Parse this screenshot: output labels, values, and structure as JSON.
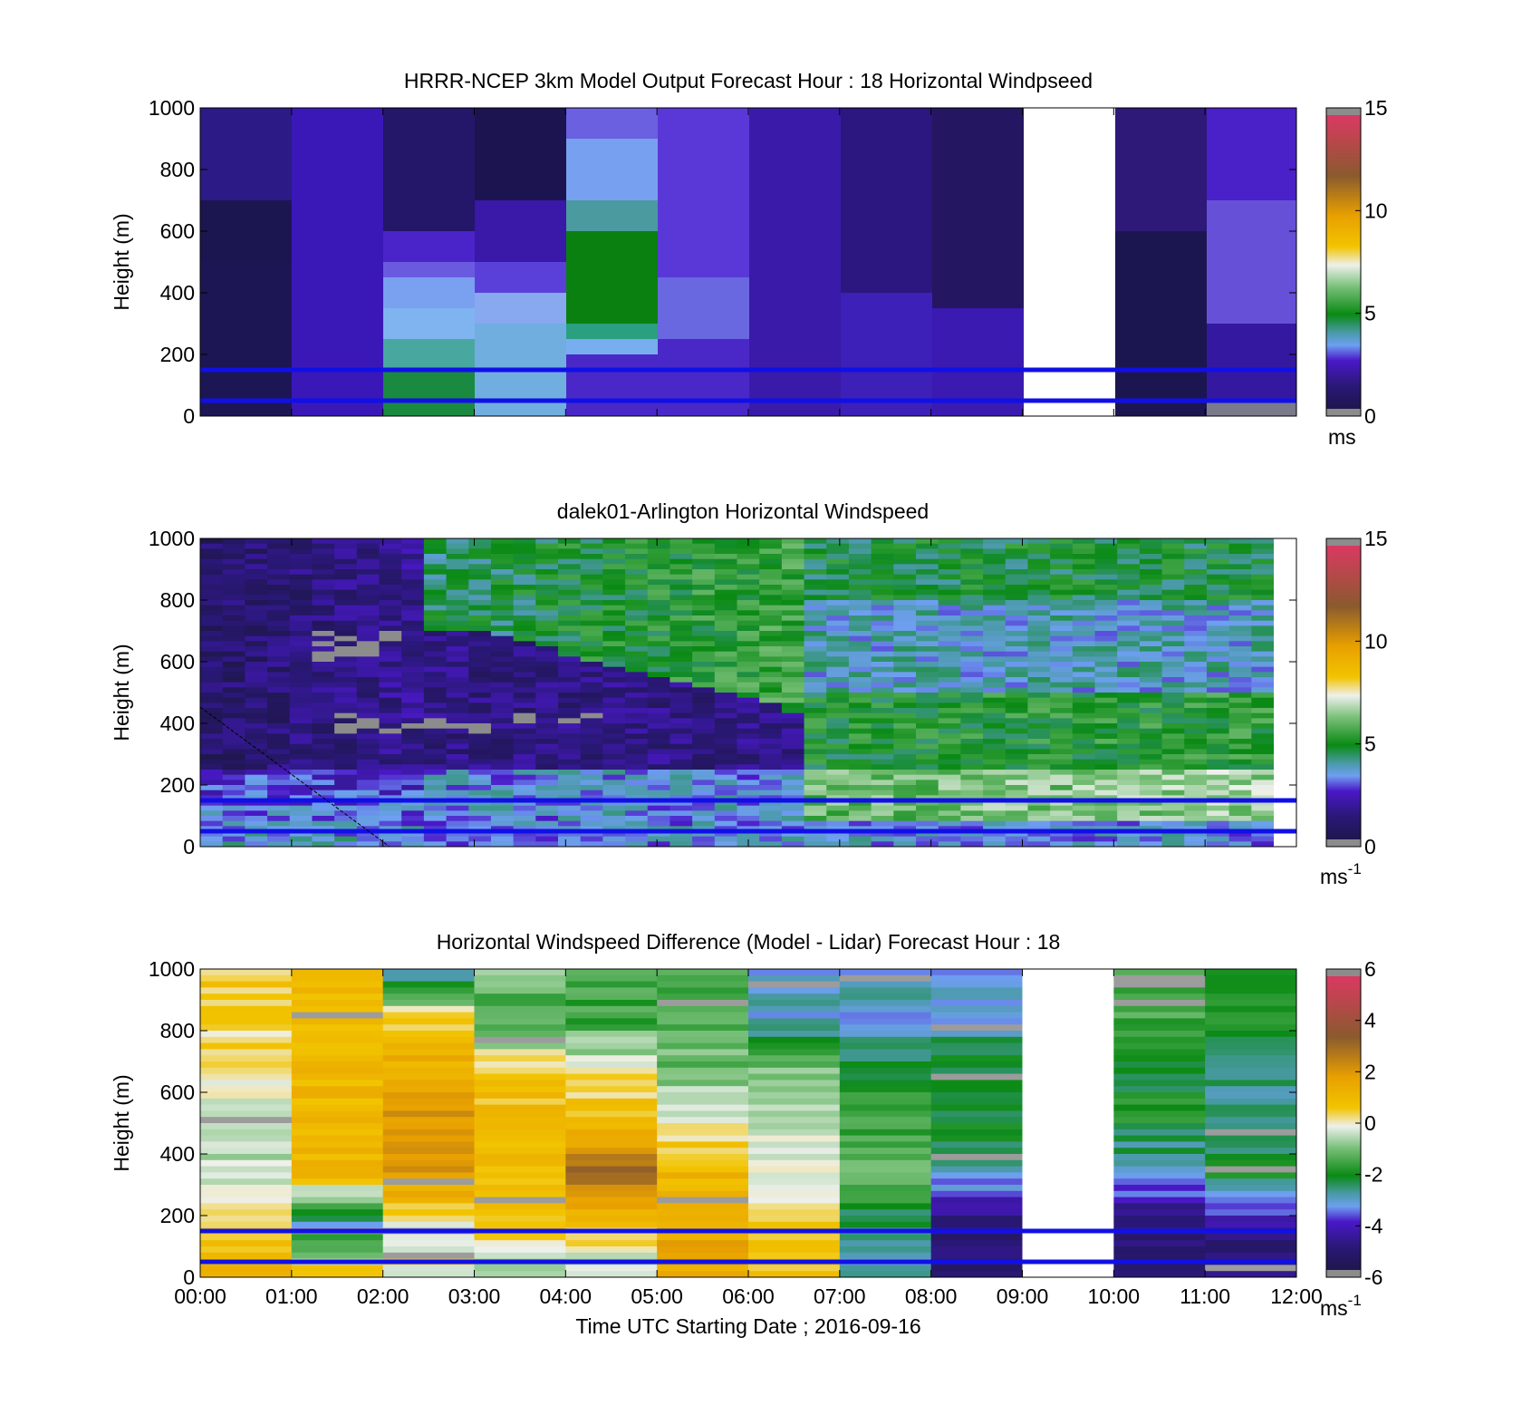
{
  "figure": {
    "xlabel": "Time UTC  Starting Date ; 2016-09-16",
    "time_ticks": [
      "00:00",
      "01:00",
      "02:00",
      "03:00",
      "04:00",
      "05:00",
      "06:00",
      "07:00",
      "08:00",
      "09:00",
      "10:00",
      "11:00",
      "12:00"
    ],
    "height_ticks": [
      "0",
      "200",
      "400",
      "600",
      "800",
      "1000"
    ],
    "ylabel": "Height (m)",
    "reference_lines_m": [
      50,
      150
    ],
    "reference_line_color": "#1010e6",
    "colormap": [
      "#1c1640",
      "#2a1878",
      "#4a18c8",
      "#6a50e0",
      "#6e9ff0",
      "#4aa0a8",
      "#0a8a14",
      "#52b852",
      "#eef0ec",
      "#f2c400",
      "#e8a000",
      "#8a5a2e",
      "#d83a60"
    ]
  },
  "chart_data": [
    {
      "type": "heatmap",
      "title": "HRRR-NCEP 3km Model Output   Forecast Hour : 18 Horizontal Windpseed",
      "x_range": [
        "00:00",
        "12:00"
      ],
      "y_range": [
        0,
        1000
      ],
      "colorbar": {
        "ticks": [
          "0",
          "5",
          "10",
          "15"
        ],
        "range": [
          0,
          15
        ],
        "unit_label": "ms"
      },
      "hourly_profiles_ms": [
        [
          2,
          2,
          1.5,
          1,
          1,
          1.5,
          1.5
        ],
        [
          2,
          2,
          2,
          2,
          2,
          2,
          2
        ],
        [
          5,
          3.5,
          3.5,
          3,
          2.5,
          2,
          1.5
        ],
        [
          3.5,
          3.5,
          3.5,
          2.5,
          2,
          1.5,
          1.5
        ],
        [
          2.5,
          3.5,
          5,
          5,
          4,
          3.5,
          3
        ],
        [
          2,
          3,
          3,
          2.5,
          2.5,
          2.5,
          2.5
        ],
        [
          2,
          2,
          2,
          1.5,
          1.5,
          1.5,
          1.5
        ],
        [
          2,
          2.5,
          2,
          1.5,
          1.5,
          1.5,
          1.5
        ],
        [
          1.5,
          2,
          1.5,
          1.5,
          1.5,
          1.5,
          1.5
        ],
        null,
        [
          1,
          1.5,
          1,
          1,
          1.5,
          1.5,
          1.5
        ],
        [
          0.5,
          2,
          2.5,
          2.5,
          2,
          2,
          2
        ]
      ]
    },
    {
      "type": "heatmap",
      "title": "dalek01-Arlington  Horizontal Windspeed",
      "x_range": [
        "00:00",
        "12:00"
      ],
      "y_range": [
        0,
        1000
      ],
      "colorbar": {
        "ticks": [
          "0",
          "5",
          "10",
          "15"
        ],
        "range": [
          0,
          15
        ],
        "unit_label": "ms",
        "unit_exponent": "-1"
      },
      "missing_color": "#8c8c8c"
    },
    {
      "type": "heatmap",
      "title": "Horizontal Windspeed Difference (Model - Lidar) Forecast Hour : 18",
      "x_range": [
        "00:00",
        "12:00"
      ],
      "y_range": [
        0,
        1000
      ],
      "colorbar": {
        "ticks": [
          "-6",
          "-4",
          "-2",
          "0",
          "2",
          "4",
          "6"
        ],
        "range": [
          -6,
          6
        ],
        "unit_label": "ms",
        "unit_exponent": "-1"
      },
      "hourly_profiles_ms": [
        [
          1,
          0.5,
          -0.5,
          -0.5,
          0,
          0.5,
          0.5
        ],
        [
          1,
          -3,
          1,
          1,
          1,
          1,
          1
        ],
        [
          0,
          0,
          2,
          2,
          1.5,
          0.5,
          -3
        ],
        [
          -1,
          0.5,
          1,
          1,
          0.5,
          -1.5,
          -1
        ],
        [
          -0.5,
          0.5,
          3,
          1,
          0,
          -1.5,
          -1.5
        ],
        [
          1.5,
          1.5,
          1,
          0,
          -1,
          -1.5,
          -1.5
        ],
        [
          0.5,
          0.5,
          0,
          -0.5,
          -1,
          -3,
          -3
        ],
        [
          -3,
          -2.5,
          -1,
          -1.5,
          -2,
          -3,
          -3
        ],
        [
          -5,
          -5,
          -3,
          -2,
          -2,
          -3,
          -3.5
        ],
        null,
        [
          -5,
          -5,
          -3,
          -2,
          -2,
          -1.5,
          -1.5
        ],
        [
          -5,
          -4.5,
          -2,
          -2.5,
          -2.5,
          -2,
          -2
        ]
      ]
    }
  ]
}
